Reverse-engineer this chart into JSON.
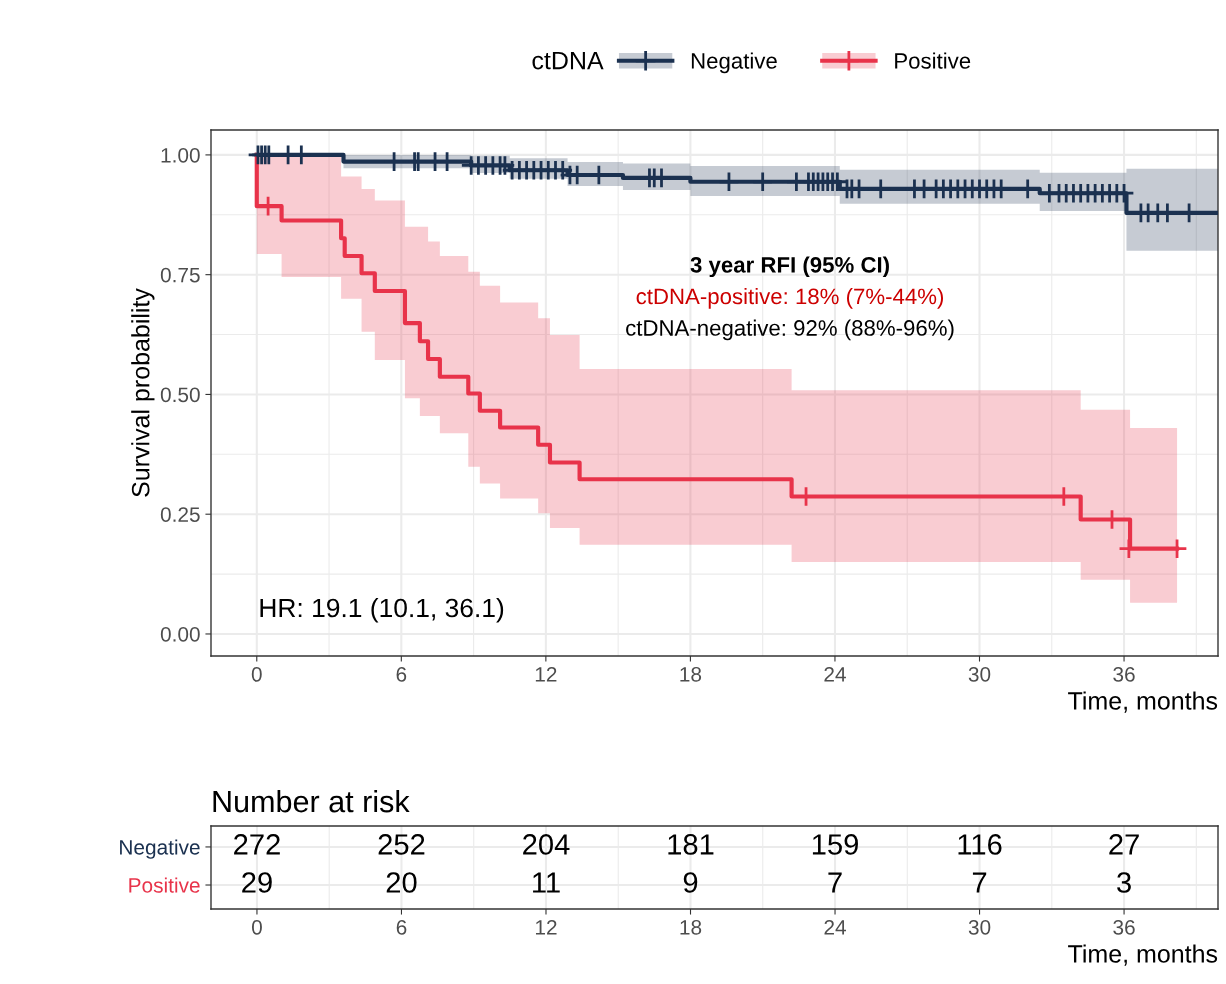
{
  "chart_data": [
    {
      "type": "step",
      "xlabel": "Time, months",
      "ylabel": "Survival probability",
      "legend_title": "ctDNA",
      "legend": "top",
      "grid": true,
      "xlim": [
        -1.9,
        39.9
      ],
      "xticks": [
        0,
        6,
        12,
        18,
        24,
        30,
        36
      ],
      "ylim": [
        -0.046,
        1.052
      ],
      "yticks": [
        {
          "value": 0,
          "label": "0.00"
        },
        {
          "value": 0.25,
          "label": "0.25"
        },
        {
          "value": 0.5,
          "label": "0.50"
        },
        {
          "value": 0.75,
          "label": "0.75"
        },
        {
          "value": 1,
          "label": "1.00"
        }
      ],
      "annotations": [
        "3 year RFI (95% CI)",
        "ctDNA-positive: 18% (7%-44%)",
        "ctDNA-negative: 92% (88%-96%)",
        "HR: 19.1 (10.1, 36.1)"
      ],
      "series": [
        {
          "name": "Negative",
          "type": "step",
          "color": "#1b3150",
          "x": [
            0,
            3.6,
            8.9,
            10.5,
            12.9,
            15.2,
            18.0,
            24.2,
            32.5,
            36.1,
            39.9
          ],
          "values": [
            1.0,
            0.986,
            0.978,
            0.968,
            0.958,
            0.952,
            0.944,
            0.929,
            0.92,
            0.879,
            0.879
          ],
          "lower": [
            1.0,
            0.972,
            0.962,
            0.95,
            0.935,
            0.927,
            0.914,
            0.898,
            0.883,
            0.8,
            0.8
          ],
          "upper": [
            1.0,
            1.0,
            0.998,
            0.993,
            0.985,
            0.982,
            0.977,
            0.969,
            0.963,
            0.971,
            0.971
          ]
        },
        {
          "name": "Positive",
          "type": "step",
          "color": "#e8334a",
          "x": [
            0,
            0,
            1.03,
            3.5,
            3.65,
            4.35,
            4.9,
            6.15,
            6.77,
            7.11,
            7.6,
            8.78,
            9.26,
            10.1,
            11.68,
            12.17,
            13.4,
            22.2,
            34.2,
            36.25,
            38.2
          ],
          "values": [
            1.0,
            0.893,
            0.863,
            0.826,
            0.789,
            0.753,
            0.716,
            0.649,
            0.611,
            0.574,
            0.537,
            0.502,
            0.466,
            0.431,
            0.395,
            0.358,
            0.323,
            0.287,
            0.239,
            0.178,
            0.178
          ],
          "lower": [
            1.0,
            0.793,
            0.745,
            0.7,
            0.7,
            0.631,
            0.572,
            0.492,
            0.455,
            0.455,
            0.419,
            0.349,
            0.314,
            0.283,
            0.252,
            0.221,
            0.186,
            0.15,
            0.113,
            0.065,
            0.065
          ],
          "upper": [
            1.0,
            1.0,
            1.0,
            0.955,
            0.955,
            0.929,
            0.905,
            0.85,
            0.85,
            0.819,
            0.789,
            0.756,
            0.727,
            0.692,
            0.659,
            0.624,
            0.553,
            0.509,
            0.468,
            0.43,
            0.43
          ]
        },
        {
          "type": "scatter",
          "marker": "cross",
          "color": "#1b3150",
          "x": [
            0.05,
            0.2,
            0.35,
            0.5,
            1.3,
            1.85,
            5.7,
            6.55,
            6.7,
            7.4,
            7.9,
            8.9,
            9.2,
            9.5,
            9.8,
            10.1,
            10.3,
            10.6,
            10.9,
            11.2,
            11.5,
            11.8,
            12.1,
            12.4,
            12.7,
            13.0,
            13.3,
            14.2,
            16.3,
            16.5,
            16.8,
            19.6,
            21.0,
            22.4,
            22.9,
            23.1,
            23.3,
            23.5,
            23.7,
            23.9,
            24.1,
            24.5,
            24.7,
            25.0,
            25.9,
            27.3,
            27.7,
            28.2,
            28.5,
            28.8,
            29.1,
            29.4,
            29.7,
            30.0,
            30.3,
            30.6,
            30.9,
            32.0,
            32.9,
            33.3,
            33.6,
            33.9,
            34.2,
            34.5,
            34.8,
            35.1,
            35.4,
            35.7,
            36.0,
            36.7,
            37.0,
            37.4,
            37.8,
            38.7
          ],
          "values": [
            1.0,
            1.0,
            1.0,
            1.0,
            1.0,
            1.0,
            0.986,
            0.986,
            0.986,
            0.986,
            0.986,
            0.978,
            0.978,
            0.978,
            0.978,
            0.978,
            0.978,
            0.968,
            0.968,
            0.968,
            0.968,
            0.968,
            0.968,
            0.968,
            0.968,
            0.958,
            0.958,
            0.958,
            0.952,
            0.952,
            0.952,
            0.944,
            0.944,
            0.944,
            0.944,
            0.944,
            0.944,
            0.944,
            0.944,
            0.944,
            0.944,
            0.929,
            0.929,
            0.929,
            0.929,
            0.929,
            0.929,
            0.929,
            0.929,
            0.929,
            0.929,
            0.929,
            0.929,
            0.929,
            0.929,
            0.929,
            0.929,
            0.929,
            0.92,
            0.92,
            0.92,
            0.92,
            0.92,
            0.92,
            0.92,
            0.92,
            0.92,
            0.92,
            0.92,
            0.879,
            0.879,
            0.879,
            0.879,
            0.879
          ]
        },
        {
          "type": "scatter",
          "marker": "cross",
          "color": "#e8334a",
          "x": [
            0.47,
            22.8,
            33.5,
            35.5,
            36.2,
            38.2
          ],
          "values": [
            0.893,
            0.287,
            0.287,
            0.239,
            0.178,
            0.178
          ]
        }
      ]
    },
    {
      "type": "heatmap",
      "title": "Number at risk",
      "xlabel": "Time, months",
      "grid": true,
      "data_labels": true,
      "categories": [
        "0",
        "6",
        "12",
        "18",
        "24",
        "30",
        "36"
      ],
      "y_categories": [
        "Negative",
        "Positive"
      ],
      "cells": [
        [
          272,
          252,
          204,
          181,
          159,
          116,
          27
        ],
        [
          29,
          20,
          11,
          9,
          7,
          7,
          3
        ]
      ]
    }
  ]
}
